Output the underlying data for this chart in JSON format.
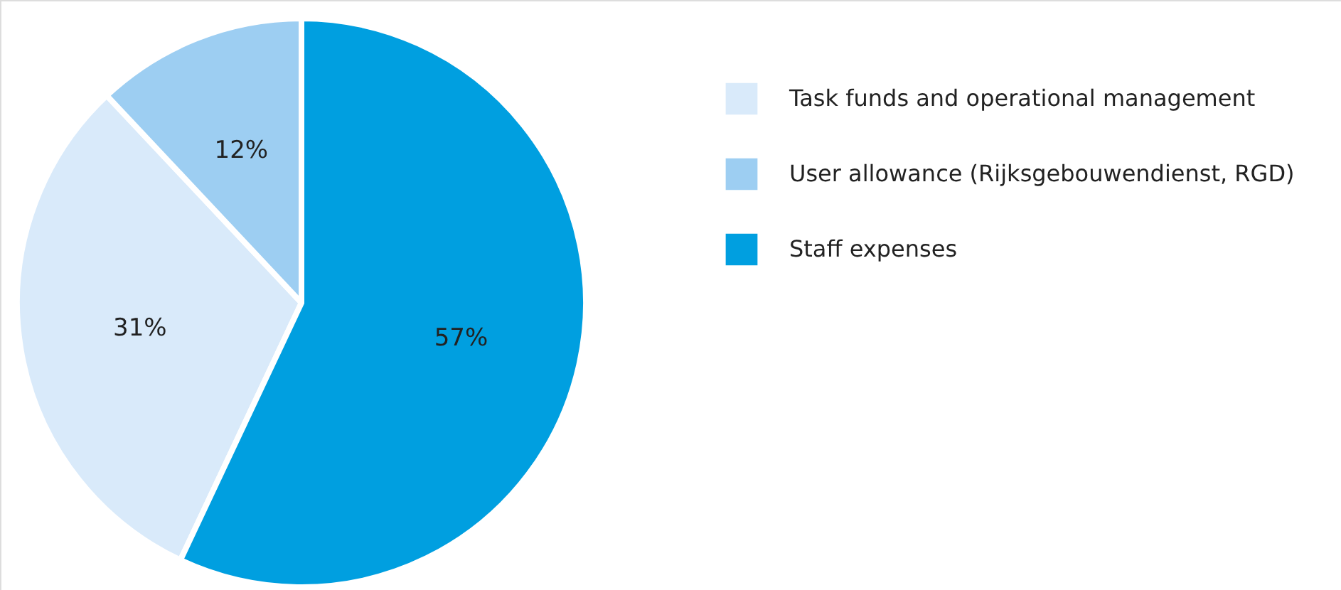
{
  "chart_data": {
    "type": "pie",
    "categories": [
      "Task funds and operational management",
      "User allowance (Rijksgebouwendienst, RGD)",
      "Staff expenses"
    ],
    "values": [
      31,
      12,
      57
    ],
    "colors": [
      "#d9eafa",
      "#9dcef2",
      "#009fe0"
    ],
    "value_labels": [
      "31%",
      "12%",
      "57%"
    ],
    "legend": "right"
  }
}
